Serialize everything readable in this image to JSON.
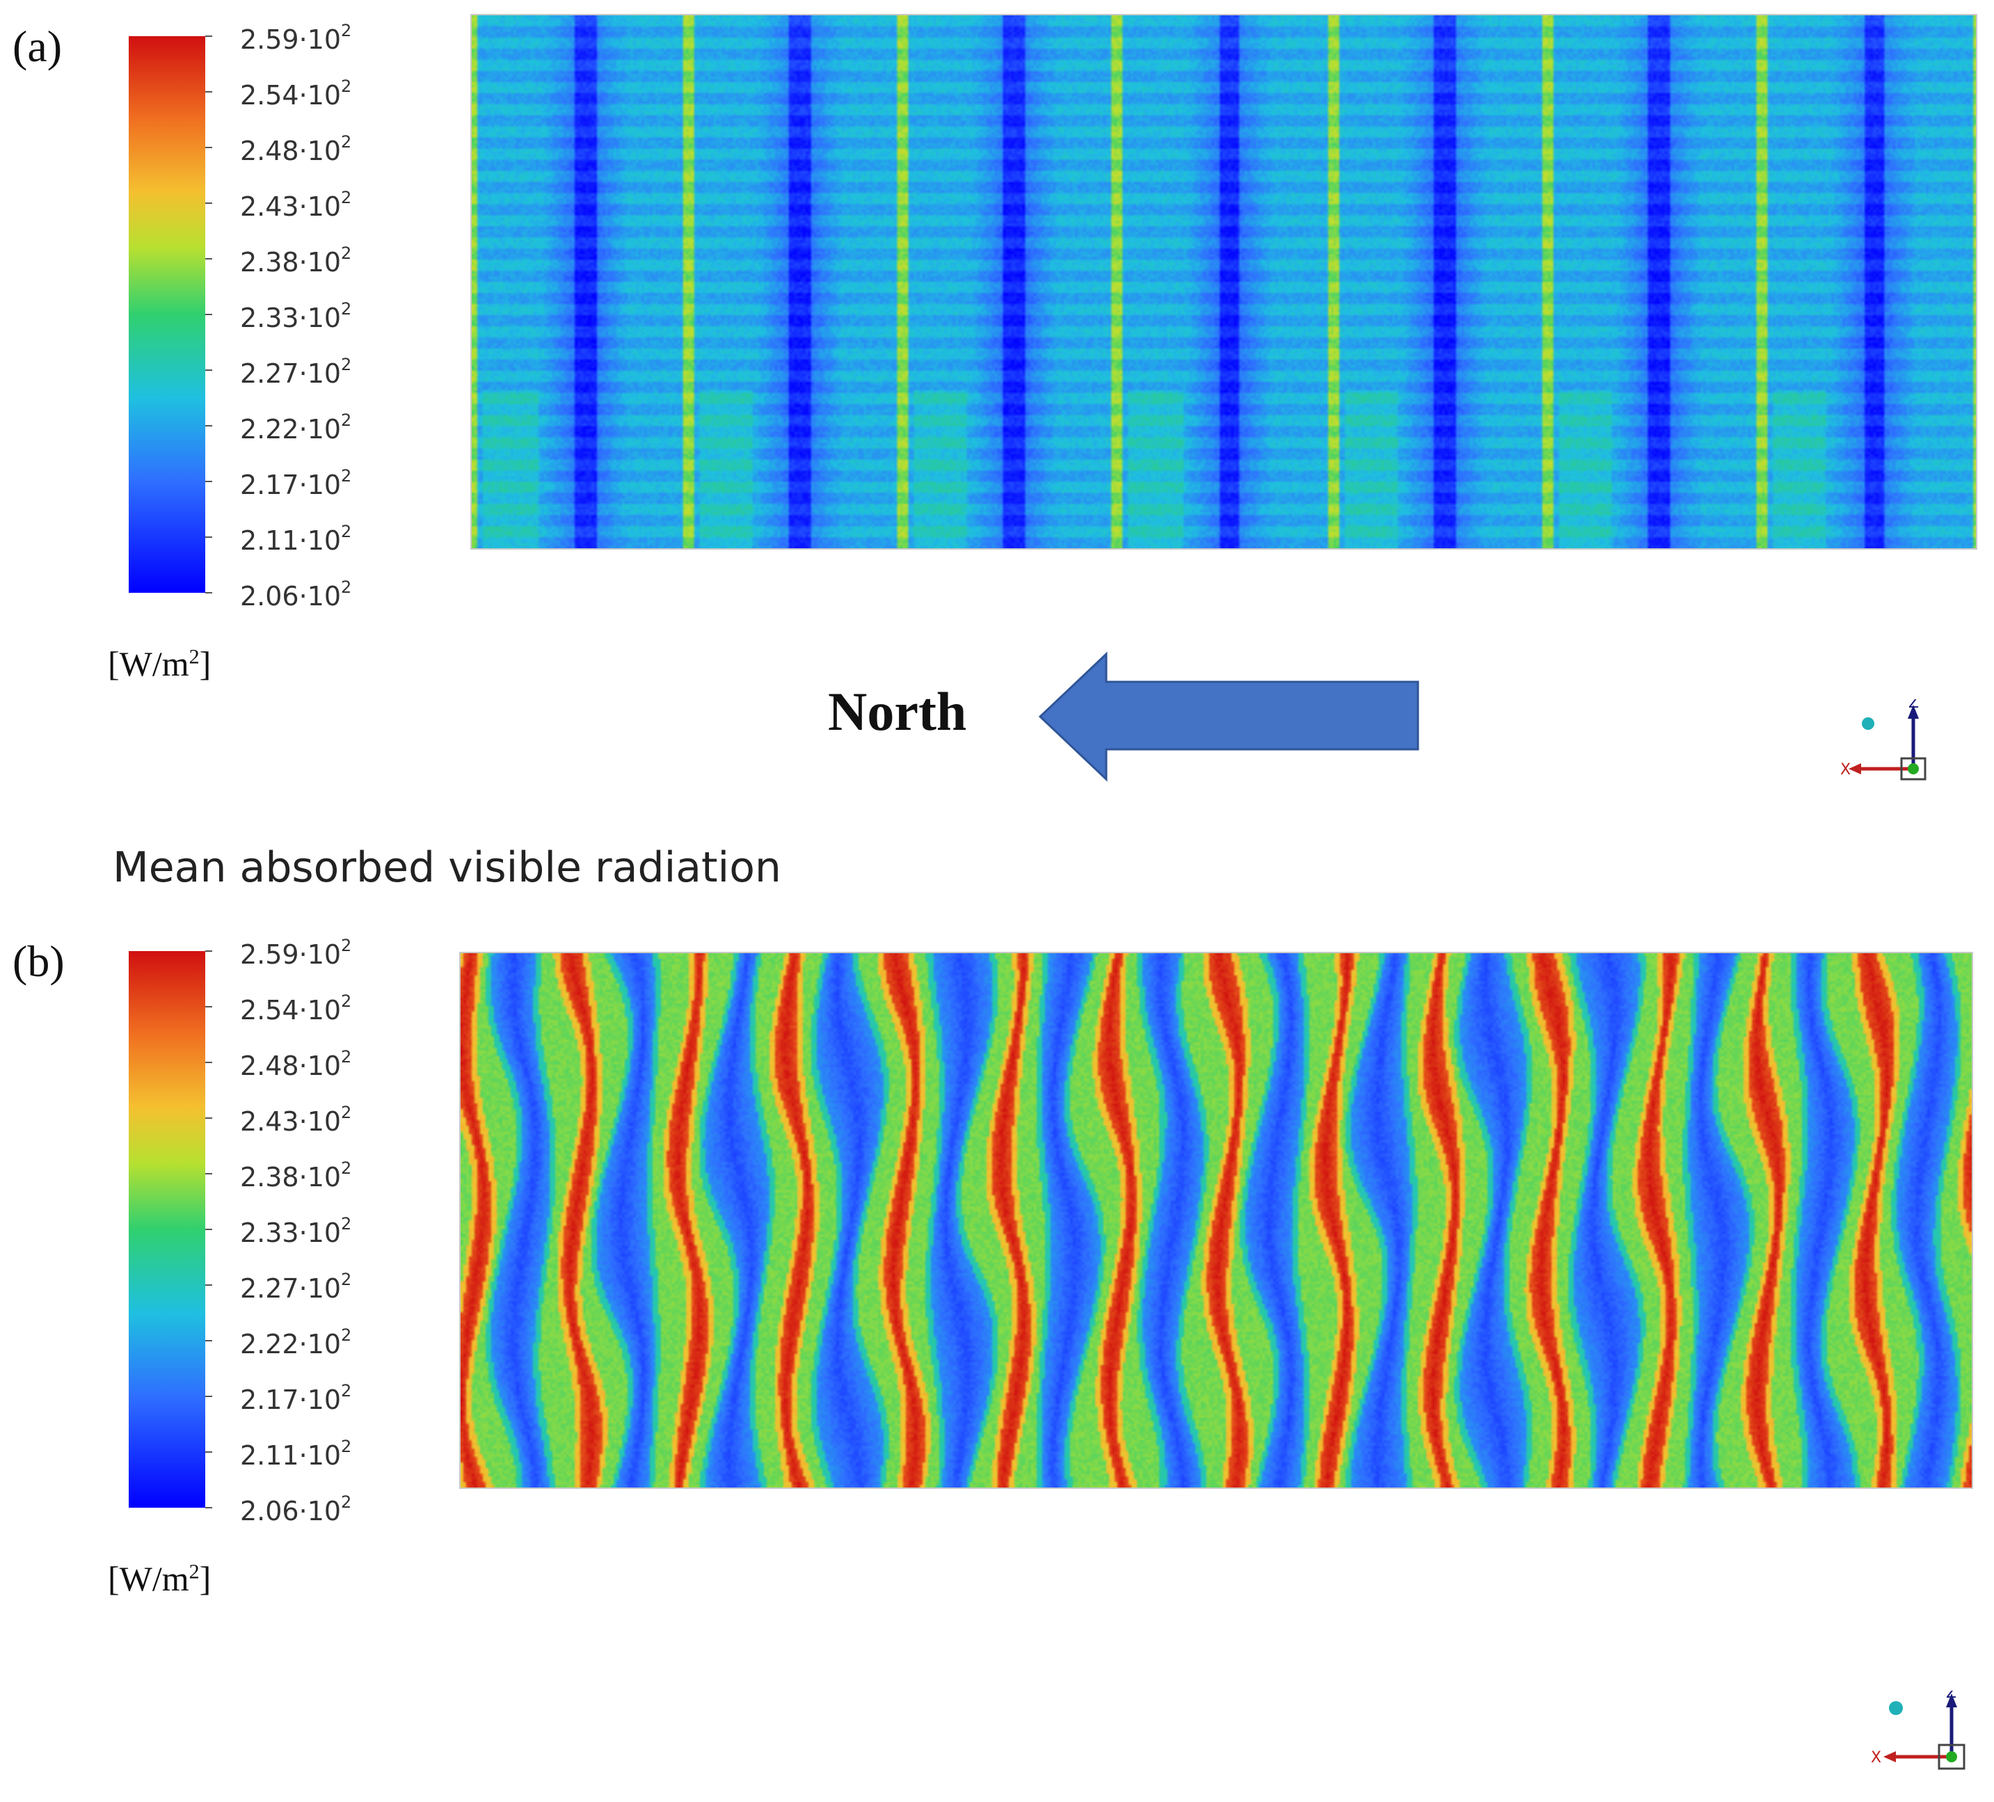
{
  "chart_data": [
    {
      "type": "heatmap",
      "panel_label": "(a)",
      "title": "",
      "colorbar": {
        "ticks": [
          {
            "mantissa": "2.59",
            "base": "10",
            "exp": "2"
          },
          {
            "mantissa": "2.54",
            "base": "10",
            "exp": "2"
          },
          {
            "mantissa": "2.48",
            "base": "10",
            "exp": "2"
          },
          {
            "mantissa": "2.43",
            "base": "10",
            "exp": "2"
          },
          {
            "mantissa": "2.38",
            "base": "10",
            "exp": "2"
          },
          {
            "mantissa": "2.33",
            "base": "10",
            "exp": "2"
          },
          {
            "mantissa": "2.27",
            "base": "10",
            "exp": "2"
          },
          {
            "mantissa": "2.22",
            "base": "10",
            "exp": "2"
          },
          {
            "mantissa": "2.17",
            "base": "10",
            "exp": "2"
          },
          {
            "mantissa": "2.11",
            "base": "10",
            "exp": "2"
          },
          {
            "mantissa": "2.06",
            "base": "10",
            "exp": "2"
          }
        ],
        "range": [
          206,
          259
        ],
        "unit": {
          "prefix": "[W/m",
          "exp": "2",
          "suffix": "]"
        }
      },
      "field": {
        "periods": 7,
        "min_value": 206,
        "max_value": 240
      }
    },
    {
      "type": "heatmap",
      "panel_label": "(b)",
      "title": "Mean absorbed visible radiation",
      "colorbar": {
        "ticks": [
          {
            "mantissa": "2.59",
            "base": "10",
            "exp": "2"
          },
          {
            "mantissa": "2.54",
            "base": "10",
            "exp": "2"
          },
          {
            "mantissa": "2.48",
            "base": "10",
            "exp": "2"
          },
          {
            "mantissa": "2.43",
            "base": "10",
            "exp": "2"
          },
          {
            "mantissa": "2.38",
            "base": "10",
            "exp": "2"
          },
          {
            "mantissa": "2.33",
            "base": "10",
            "exp": "2"
          },
          {
            "mantissa": "2.27",
            "base": "10",
            "exp": "2"
          },
          {
            "mantissa": "2.22",
            "base": "10",
            "exp": "2"
          },
          {
            "mantissa": "2.17",
            "base": "10",
            "exp": "2"
          },
          {
            "mantissa": "2.11",
            "base": "10",
            "exp": "2"
          },
          {
            "mantissa": "2.06",
            "base": "10",
            "exp": "2"
          }
        ],
        "range": [
          206,
          259
        ],
        "unit": {
          "prefix": "[W/m",
          "exp": "2",
          "suffix": "]"
        }
      },
      "field": {
        "periods": 14,
        "min_value": 206,
        "max_value": 259
      }
    }
  ],
  "direction": {
    "label": "North",
    "arrow": "left-arrow-icon"
  },
  "axis_triads": [
    {
      "x_label": "X",
      "z_label": "Z"
    },
    {
      "x_label": "X",
      "z_label": "Z"
    }
  ],
  "colors": {
    "jet": [
      "#00008f",
      "#0000ff",
      "#0080ff",
      "#00ffff",
      "#80ff80",
      "#ffff00",
      "#ff8000",
      "#ff0000",
      "#800000"
    ],
    "arrow": "#4472c4",
    "arrow_edge": "#2f5597"
  }
}
